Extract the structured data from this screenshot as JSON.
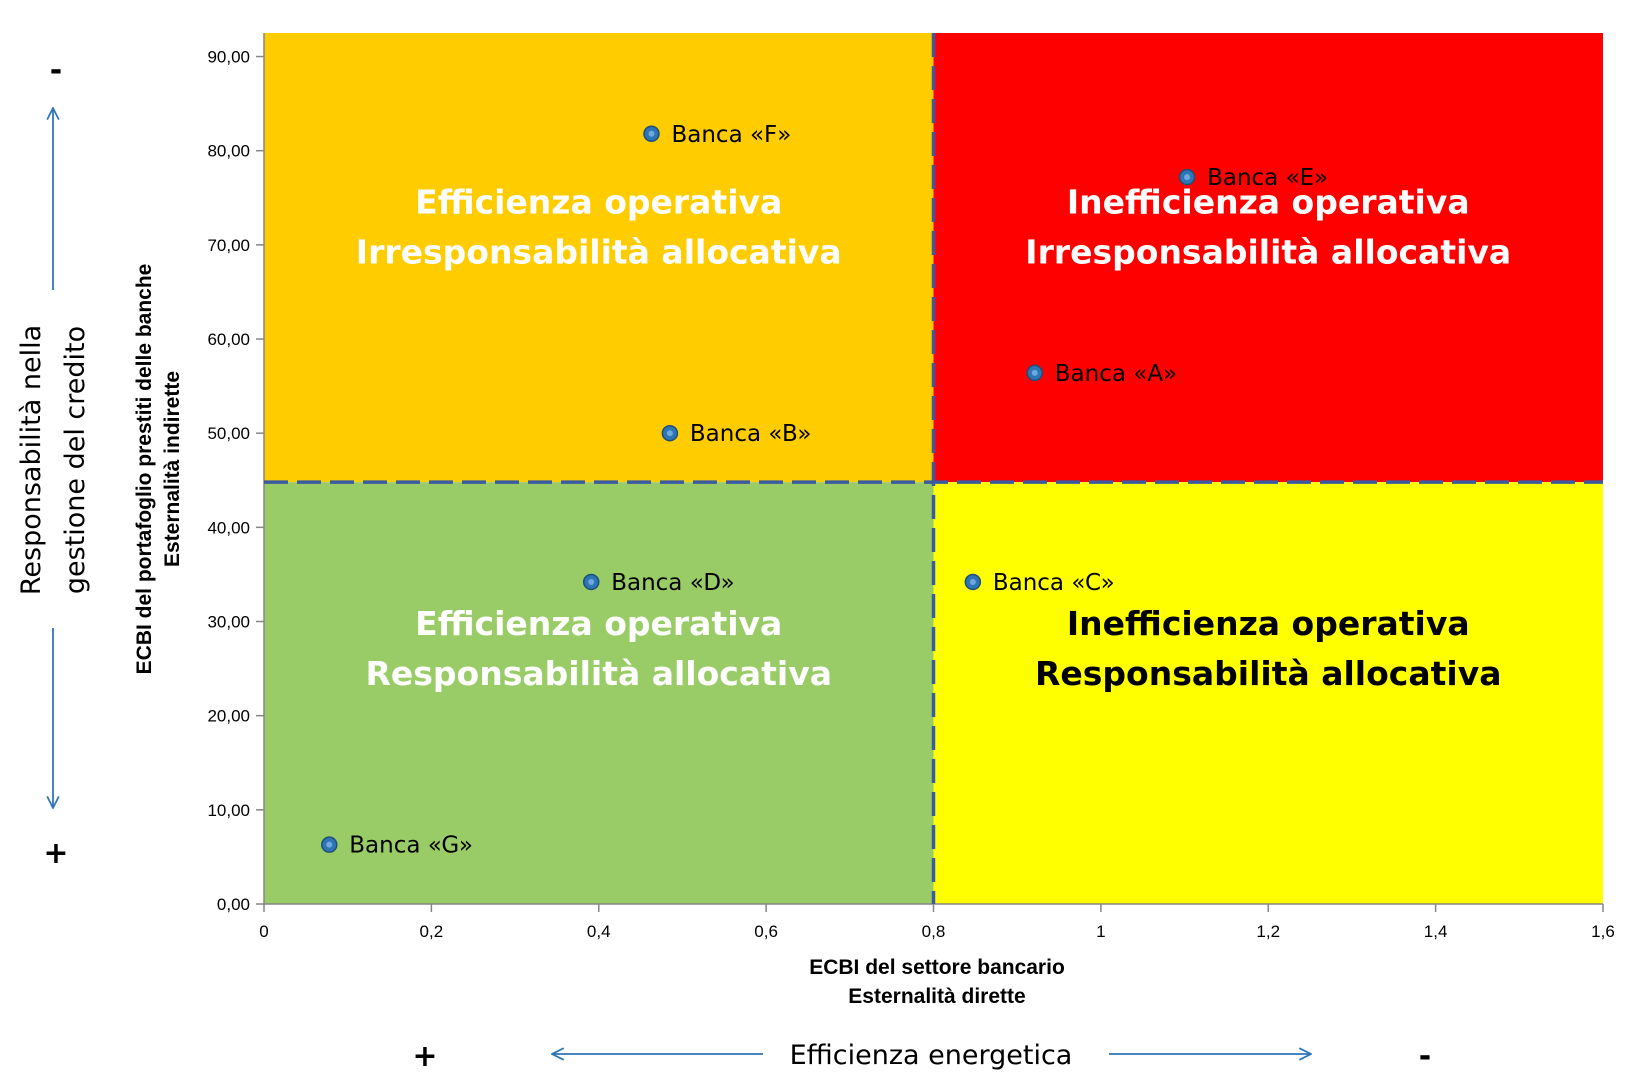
{
  "chart_data": {
    "type": "scatter",
    "x_axis": {
      "title_lines": [
        "ECBI del settore bancario",
        "Esternalità dirette"
      ],
      "ticks": [
        "0",
        "0,2",
        "0,4",
        "0,6",
        "0,8",
        "1",
        "1,2",
        "1,4",
        "1,6"
      ],
      "range": [
        0,
        1.6
      ]
    },
    "y_axis": {
      "title_lines": [
        "ECBI del portafoglio prestiti delle banche",
        "Esternalità indirette"
      ],
      "ticks": [
        "0,00",
        "10,00",
        "20,00",
        "30,00",
        "40,00",
        "50,00",
        "60,00",
        "70,00",
        "80,00",
        "90,00"
      ],
      "range": [
        0,
        92.5
      ]
    },
    "thresholds": {
      "x": 0.8,
      "y": 44.8
    },
    "quadrants": [
      {
        "id": "top-left",
        "color": "#FFCC00",
        "text_color": "#FFFFFF",
        "lines": [
          "Efficienza operativa",
          "Irresponsabilità allocativa"
        ]
      },
      {
        "id": "top-right",
        "color": "#FF0000",
        "text_color": "#FFFFFF",
        "lines": [
          "Inefficienza operativa",
          "Irresponsabilità allocativa"
        ]
      },
      {
        "id": "bottom-left",
        "color": "#99CC66",
        "text_color": "#FFFFFF",
        "lines": [
          "Efficienza operativa",
          "Responsabilità allocativa"
        ]
      },
      {
        "id": "bottom-right",
        "color": "#FFFF00",
        "text_color": "#000000",
        "lines": [
          "Inefficienza operativa",
          "Responsabilità allocativa"
        ]
      }
    ],
    "points": [
      {
        "label": "Banca «F»",
        "x": 0.463,
        "y": 81.8
      },
      {
        "label": "Banca «E»",
        "x": 1.103,
        "y": 77.2
      },
      {
        "label": "Banca «A»",
        "x": 0.921,
        "y": 56.4
      },
      {
        "label": "Banca «B»",
        "x": 0.485,
        "y": 50.0
      },
      {
        "label": "Banca «D»",
        "x": 0.391,
        "y": 34.2
      },
      {
        "label": "Banca «C»",
        "x": 0.847,
        "y": 34.2
      },
      {
        "label": "Banca «G»",
        "x": 0.078,
        "y": 6.3
      }
    ],
    "point_color": "#2E75B6",
    "divider_color": "#3A5BA0",
    "grid": false
  },
  "side_axis": {
    "lines": [
      "Responsabilità nella",
      "gestione del credito"
    ],
    "top_sign": "-",
    "bottom_sign": "+"
  },
  "bottom_axis": {
    "label": "Efficienza energetica",
    "left_sign": "+",
    "right_sign": "-"
  },
  "arrow_color": "#2E75B6"
}
